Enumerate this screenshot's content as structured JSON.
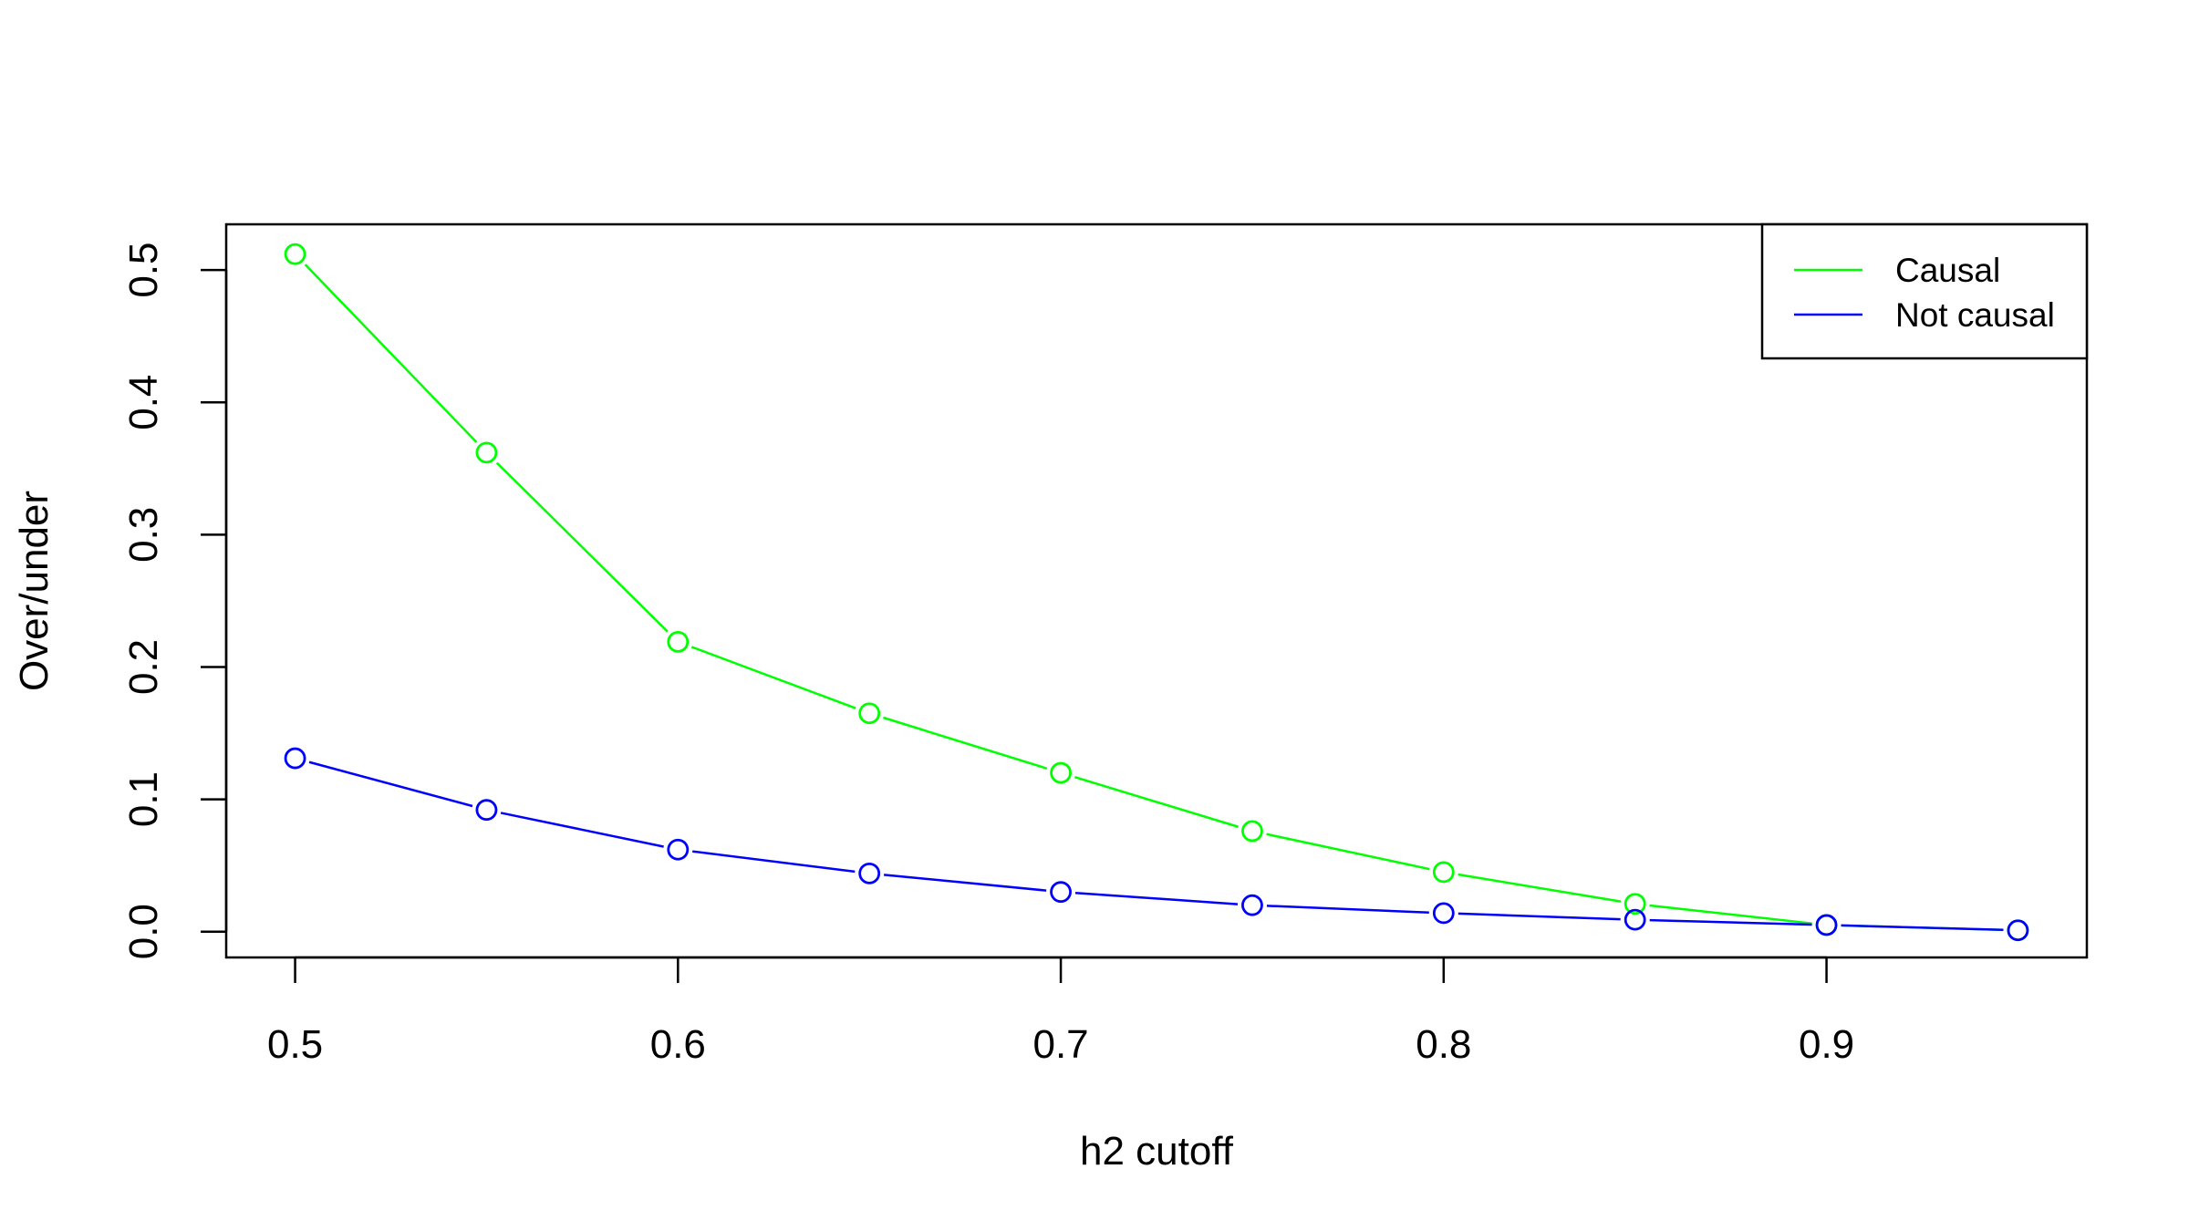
{
  "chart_data": {
    "type": "line",
    "title": "",
    "xlabel": "h2 cutoff",
    "ylabel": "Over/under",
    "xlim": [
      0.482,
      0.968
    ],
    "ylim": [
      -0.0195,
      0.5345
    ],
    "xticks": [
      0.5,
      0.6,
      0.7,
      0.8,
      0.9
    ],
    "xtick_labels": [
      "0.5",
      "0.6",
      "0.7",
      "0.8",
      "0.9"
    ],
    "yticks": [
      0.0,
      0.1,
      0.2,
      0.3,
      0.4,
      0.5
    ],
    "ytick_labels": [
      "0.0",
      "0.1",
      "0.2",
      "0.3",
      "0.4",
      "0.5"
    ],
    "grid": false,
    "legend_position": "top-right",
    "x": [
      0.5,
      0.55,
      0.6,
      0.65,
      0.7,
      0.75,
      0.8,
      0.85,
      0.9,
      0.95
    ],
    "series": [
      {
        "name": "Causal",
        "color": "#00ff00",
        "values": [
          0.512,
          0.362,
          0.219,
          0.165,
          0.12,
          0.076,
          0.045,
          0.021,
          0.005,
          0.001
        ]
      },
      {
        "name": "Not causal",
        "color": "#0000ff",
        "values": [
          0.131,
          0.092,
          0.062,
          0.044,
          0.03,
          0.02,
          0.014,
          0.009,
          0.005,
          0.001
        ]
      }
    ]
  }
}
